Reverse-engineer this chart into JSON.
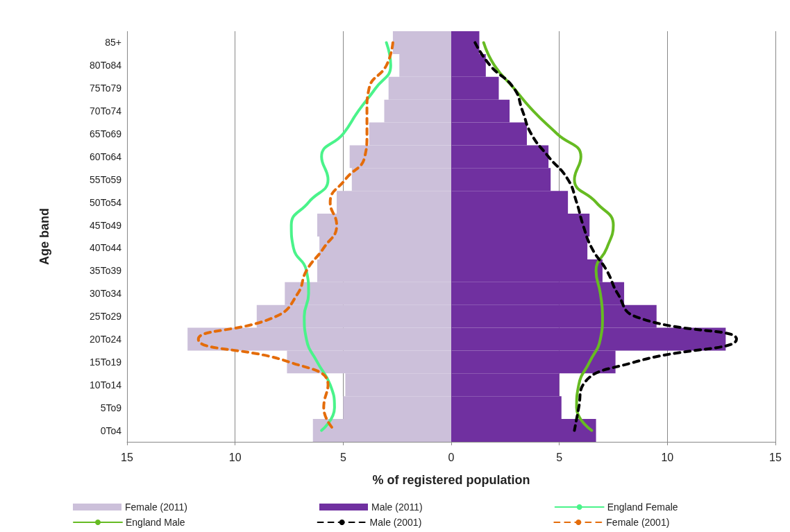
{
  "chart_data": {
    "type": "bar",
    "orientation": "horizontal",
    "xlabel": "% of registered population",
    "ylabel": "Age band",
    "categories": [
      "85+",
      "80To84",
      "75To79",
      "70To74",
      "65To69",
      "60To64",
      "55To59",
      "50To54",
      "45To49",
      "40To44",
      "35To39",
      "30To34",
      "25To29",
      "20To24",
      "15To19",
      "10To14",
      "5To9",
      "0To4"
    ],
    "xlim": [
      -15,
      15
    ],
    "xticks": [
      {
        "value": -15,
        "label": "15"
      },
      {
        "value": -10,
        "label": "10"
      },
      {
        "value": -5,
        "label": "5"
      },
      0,
      5,
      10,
      15
    ],
    "grid": "x",
    "legend": "bottom",
    "marker": "none",
    "stacked": true,
    "series": [
      {
        "name": "Female (2011)",
        "color": "#ccc0da",
        "values": [
          -2.7,
          -2.4,
          -2.9,
          -3.1,
          -3.8,
          -4.7,
          -4.6,
          -5.3,
          -6.2,
          -6.1,
          -6.2,
          -7.7,
          -9.0,
          -12.2,
          -7.6,
          -4.9,
          -5.0,
          -6.4
        ]
      },
      {
        "name": "Male (2011)",
        "color": "#7030a0",
        "values": [
          1.3,
          1.6,
          2.2,
          2.7,
          3.5,
          4.5,
          4.6,
          5.4,
          6.4,
          6.3,
          7.0,
          8.0,
          9.5,
          12.7,
          7.6,
          5.0,
          5.1,
          6.7
        ]
      },
      {
        "name": "England Female",
        "type": "line",
        "line_style": "solid",
        "color": "#4af38a",
        "values": [
          -3.0,
          -2.8,
          -3.5,
          -4.3,
          -5.0,
          -6.0,
          -5.7,
          -6.6,
          -7.4,
          -7.3,
          -6.7,
          -6.6,
          -6.8,
          -6.7,
          -6.2,
          -5.6,
          -5.4,
          -6.0
        ]
      },
      {
        "name": "England Male",
        "type": "line",
        "line_style": "solid",
        "color": "#66bb22",
        "values": [
          1.5,
          2.0,
          2.9,
          3.8,
          4.9,
          6.0,
          5.7,
          6.7,
          7.5,
          7.2,
          6.7,
          6.9,
          7.0,
          6.9,
          6.4,
          5.9,
          5.8,
          6.5
        ]
      },
      {
        "name": "Male (2001)",
        "type": "line",
        "line_style": "dashed",
        "color": "#000000",
        "values": [
          1.1,
          1.8,
          2.9,
          3.3,
          3.7,
          4.5,
          5.4,
          5.8,
          6.1,
          6.5,
          7.2,
          7.7,
          8.5,
          13.2,
          8.5,
          6.1,
          5.9,
          5.7
        ]
      },
      {
        "name": "Female (2001)",
        "type": "line",
        "line_style": "dashed",
        "color": "#e46c0a",
        "values": [
          -2.7,
          -3.0,
          -3.8,
          -3.9,
          -3.9,
          -4.0,
          -4.9,
          -5.6,
          -5.3,
          -5.9,
          -6.7,
          -7.1,
          -8.1,
          -11.7,
          -7.5,
          -5.7,
          -5.9,
          -5.4
        ]
      }
    ]
  }
}
